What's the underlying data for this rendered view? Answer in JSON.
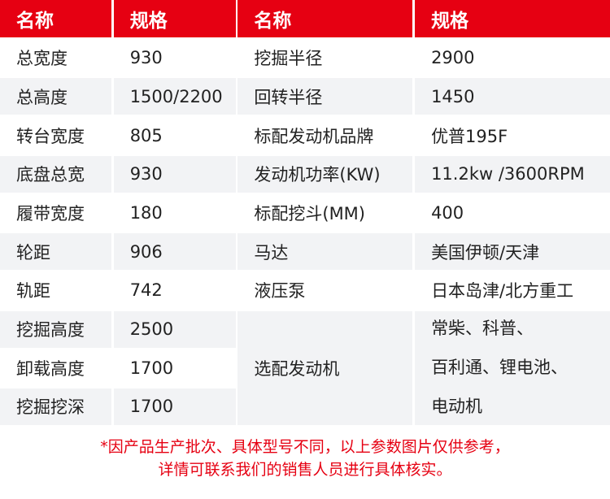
{
  "header": [
    "名称",
    "规格",
    "名称",
    "规格"
  ],
  "rows": [
    [
      "总宽度",
      "930",
      "挖掘半径",
      "2900"
    ],
    [
      "总高度",
      "1500/2200",
      "回转半径",
      "1450"
    ],
    [
      "转台宽度",
      "805",
      "标配发动机品牌",
      "优普195F"
    ],
    [
      "底盘总宽",
      "930",
      "发动机功率(KW)",
      "11.2kw  /3600RPM"
    ],
    [
      "履带宽度",
      "180",
      "标配挖斗(MM)",
      "400"
    ],
    [
      "轮距",
      "906",
      "马达",
      "美国伊顿/天津"
    ],
    [
      "轨距",
      "742",
      "液压泵",
      "日本岛津/北方重工"
    ],
    [
      "挖掘高度",
      "2500"
    ],
    [
      "卸载高度",
      "1700"
    ],
    [
      "挖掘挖深",
      "1700"
    ]
  ],
  "merged": {
    "name": "选配发动机",
    "spec_lines": [
      "常柴、科普、",
      "百利通、锂电池、",
      "电动机"
    ]
  },
  "footer": [
    "*因产品生产批次、具体型号不同，以上参数图片仅供参考，",
    "详情可联系我们的销售人员进行具体核实。"
  ],
  "colors": {
    "accent": "#e60012",
    "row_alt": "#f2f3f5"
  }
}
